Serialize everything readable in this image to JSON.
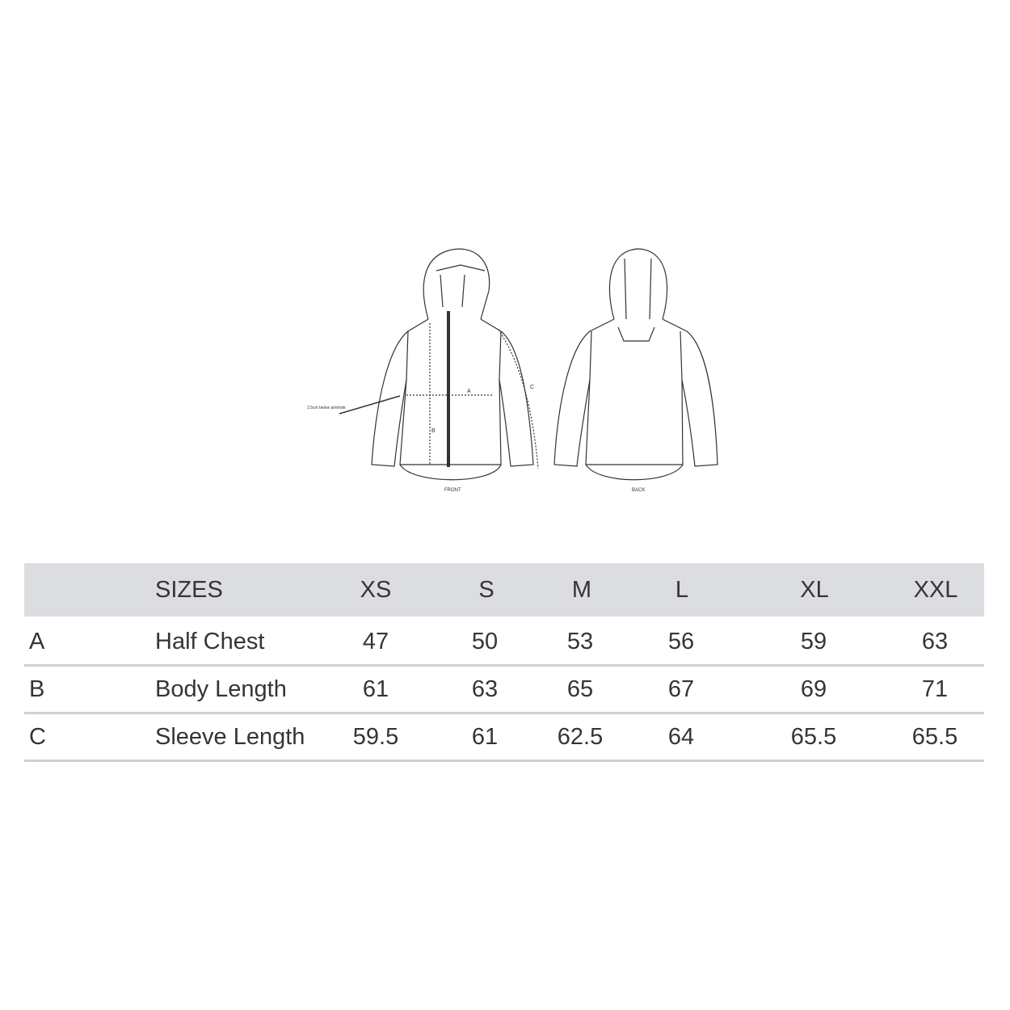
{
  "diagram": {
    "annotation": "2.5cm below armhole",
    "label_a": "A",
    "label_b": "B",
    "label_c": "C",
    "front_label": "FRONT",
    "back_label": "BACK"
  },
  "table": {
    "header": [
      "",
      "SIZES",
      "XS",
      "S",
      "M",
      "L",
      "XL",
      "XXL"
    ],
    "rows": [
      {
        "code": "A",
        "name": "Half Chest",
        "values": [
          "47",
          "50",
          "53",
          "56",
          "59",
          "63"
        ]
      },
      {
        "code": "B",
        "name": "Body Length",
        "values": [
          "61",
          "63",
          "65",
          "67",
          "69",
          "71"
        ]
      },
      {
        "code": "C",
        "name": "Sleeve Length",
        "values": [
          "59.5",
          "61",
          "62.5",
          "64",
          "65.5",
          "65.5"
        ]
      }
    ]
  }
}
